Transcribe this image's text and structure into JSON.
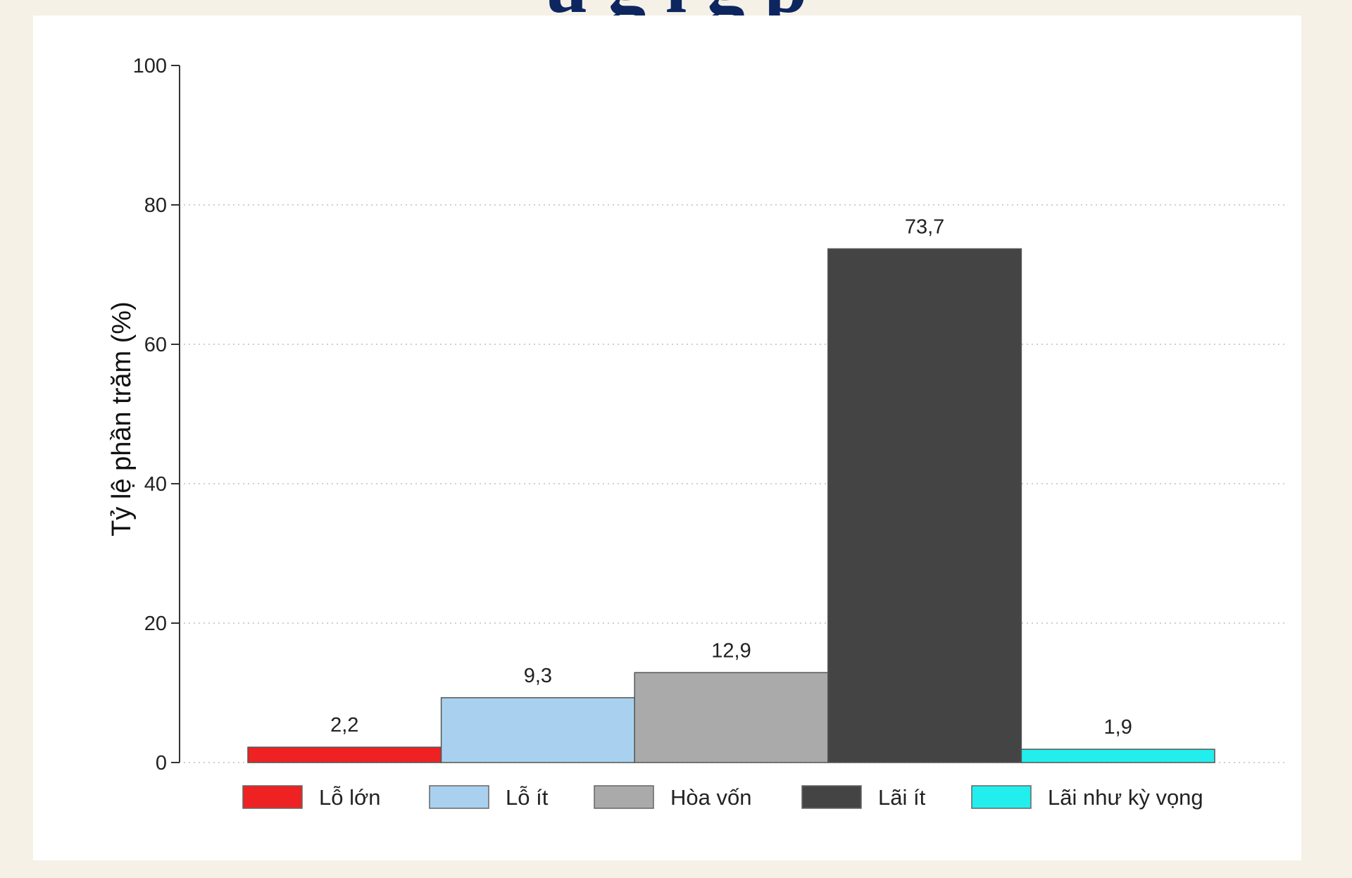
{
  "slide": {
    "background": "#f5f1e7",
    "title_fragment": "ụ         g      ị  g       p"
  },
  "chart_data": {
    "type": "bar",
    "categories": [
      "Lỗ lớn",
      "Lỗ ít",
      "Hòa vốn",
      "Lãi ít",
      "Lãi như kỳ vọng"
    ],
    "values": [
      2.2,
      9.3,
      12.9,
      73.7,
      1.9
    ],
    "value_labels": [
      "2,2",
      "9,3",
      "12,9",
      "73,7",
      "1,9"
    ],
    "colors": [
      "#ee2222",
      "#a9d1ef",
      "#aaaaaa",
      "#444444",
      "#22eeee"
    ],
    "title": "",
    "xlabel": "",
    "ylabel": "Tỷ lệ phần trăm (%)",
    "ylim": [
      0,
      100
    ],
    "yticks": [
      0,
      20,
      40,
      60,
      80,
      100
    ],
    "grid": true,
    "legend": "bottom"
  }
}
